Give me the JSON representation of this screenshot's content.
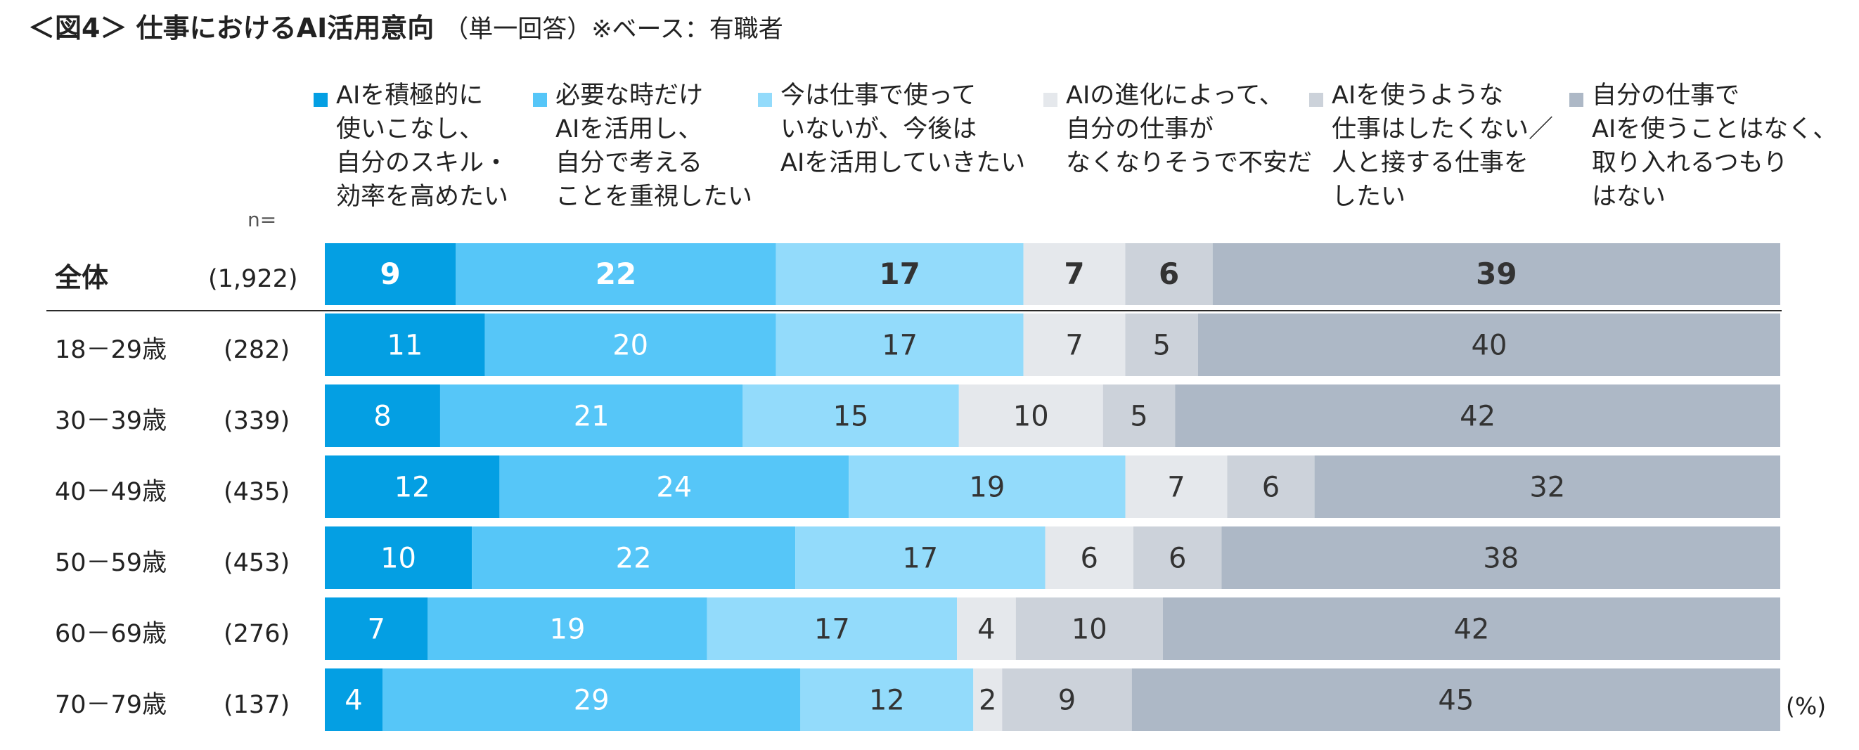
{
  "title": {
    "main": "＜図4＞ 仕事におけるAI活用意向",
    "sub": "（単一回答）※ベース：有職者"
  },
  "n_label": "n=",
  "unit": "(%)",
  "colors": {
    "series": [
      "#049fe3",
      "#56c6f8",
      "#93dbfb",
      "#e5e8ec",
      "#ccd2da",
      "#adb8c6"
    ],
    "text_on_bar": [
      "#ffffff",
      "#ffffff",
      "#333333",
      "#333333",
      "#333333",
      "#333333"
    ]
  },
  "chart_data": {
    "type": "bar",
    "orientation": "horizontal",
    "stacked": true,
    "categories": [
      "全体",
      "18－29歳",
      "30－39歳",
      "40－49歳",
      "50－59歳",
      "60－69歳",
      "70－79歳"
    ],
    "n": [
      "(1,922)",
      "(282)",
      "(339)",
      "(435)",
      "(453)",
      "(276)",
      "(137)"
    ],
    "series": [
      {
        "name": "AIを積極的に\n使いこなし、\n自分のスキル・\n効率を高めたい",
        "values": [
          9,
          11,
          8,
          12,
          10,
          7,
          4
        ]
      },
      {
        "name": "必要な時だけ\nAIを活用し、\n自分で考える\nことを重視したい",
        "values": [
          22,
          20,
          21,
          24,
          22,
          19,
          29
        ]
      },
      {
        "name": "今は仕事で使って\nいないが、今後は\nAIを活用していきたい",
        "values": [
          17,
          17,
          15,
          19,
          17,
          17,
          12
        ]
      },
      {
        "name": "AIの進化によって、\n自分の仕事が\nなくなりそうで不安だ",
        "values": [
          7,
          7,
          10,
          7,
          6,
          4,
          2
        ]
      },
      {
        "name": "AIを使うような\n仕事はしたくない／\n人と接する仕事を\nしたい",
        "values": [
          6,
          5,
          5,
          6,
          6,
          10,
          9
        ]
      },
      {
        "name": "自分の仕事で\nAIを使うことはなく、\n取り入れるつもり\nはない",
        "values": [
          39,
          40,
          42,
          32,
          38,
          42,
          45
        ]
      }
    ],
    "xlim": [
      0,
      100
    ],
    "legend_position": "top"
  }
}
